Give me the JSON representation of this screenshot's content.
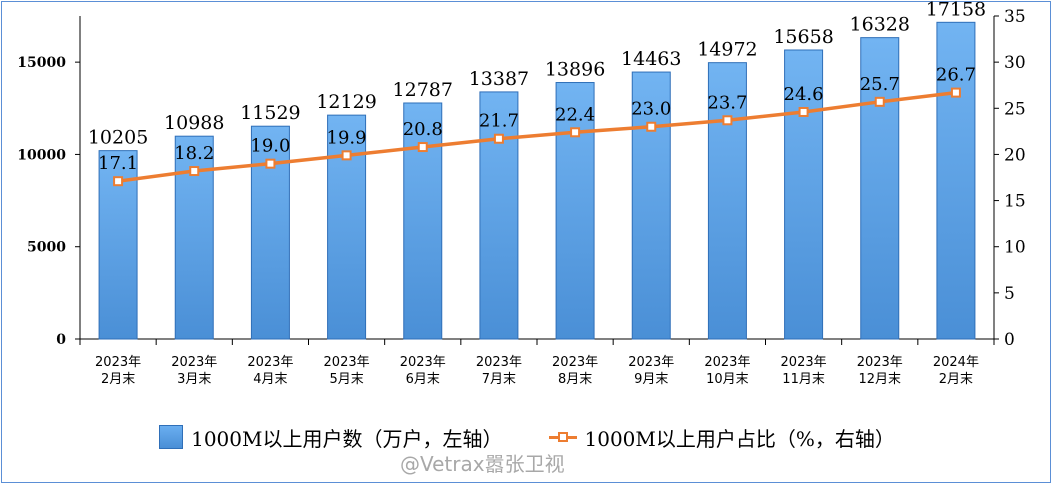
{
  "chart_data": {
    "type": "bar+line",
    "categories": [
      [
        "2023年",
        "2月末"
      ],
      [
        "2023年",
        "3月末"
      ],
      [
        "2023年",
        "4月末"
      ],
      [
        "2023年",
        "5月末"
      ],
      [
        "2023年",
        "6月末"
      ],
      [
        "2023年",
        "7月末"
      ],
      [
        "2023年",
        "8月末"
      ],
      [
        "2023年",
        "9月末"
      ],
      [
        "2023年",
        "10月末"
      ],
      [
        "2023年",
        "11月末"
      ],
      [
        "2023年",
        "12月末"
      ],
      [
        "2024年",
        "2月末"
      ]
    ],
    "series": [
      {
        "name": "1000M以上用户数（万户，左轴）",
        "type": "bar",
        "axis": "left",
        "color": "#5b9bd5",
        "values": [
          10205,
          10988,
          11529,
          12129,
          12787,
          13387,
          13896,
          14463,
          14972,
          15658,
          16328,
          17158
        ],
        "labels": [
          "10205",
          "10988",
          "11529",
          "12129",
          "12787",
          "13387",
          "13896",
          "14463",
          "14972",
          "15658",
          "16328",
          "17158"
        ]
      },
      {
        "name": "1000M以上用户占比（%，右轴）",
        "type": "line",
        "axis": "right",
        "color": "#ed7d31",
        "values": [
          17.1,
          18.2,
          19.0,
          19.9,
          20.8,
          21.7,
          22.4,
          23.0,
          23.7,
          24.6,
          25.7,
          26.7
        ],
        "labels": [
          "17.1",
          "18.2",
          "19.0",
          "19.9",
          "20.8",
          "21.7",
          "22.4",
          "23.0",
          "23.7",
          "24.6",
          "25.7",
          "26.7"
        ]
      }
    ],
    "y_left": {
      "range": [
        0,
        17500
      ],
      "ticks": [
        0,
        5000,
        10000,
        15000
      ]
    },
    "y_right": {
      "range": [
        0,
        35
      ],
      "ticks": [
        0,
        5,
        10,
        15,
        20,
        25,
        30,
        35
      ]
    },
    "legend_position": "bottom"
  },
  "legend": {
    "bar_label": "1000M以上用户数（万户，左轴）",
    "line_label": "1000M以上用户占比（%，右轴）"
  },
  "watermark": "@Vetrax嚣张卫视"
}
